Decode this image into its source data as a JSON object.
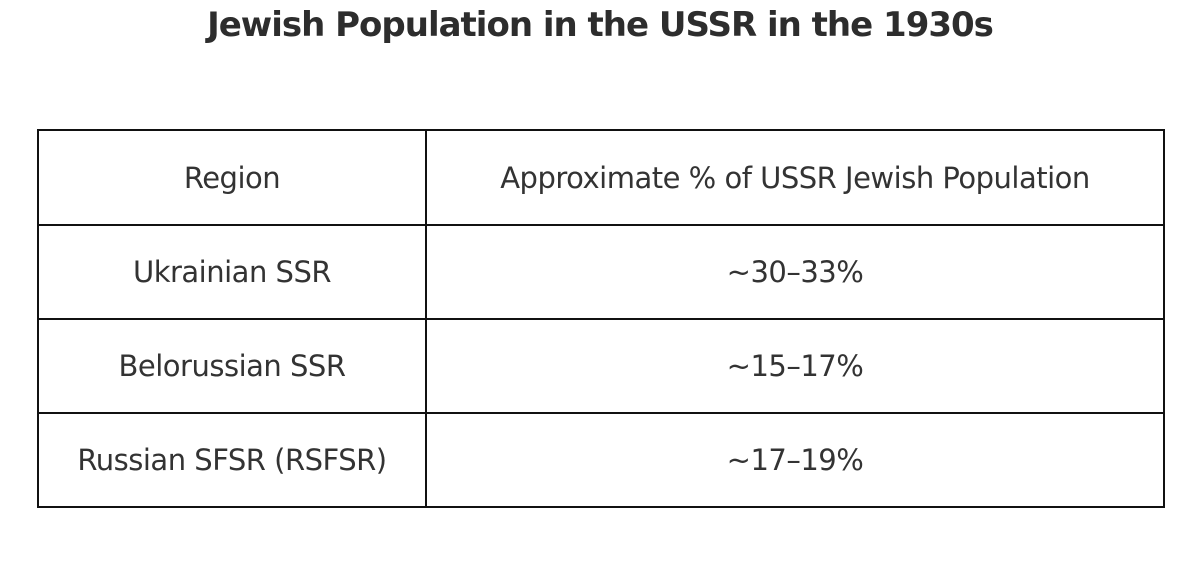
{
  "page": {
    "title": "Jewish Population in the USSR in the 1930s"
  },
  "table": {
    "headers": {
      "region": "Region",
      "value": "Approximate % of USSR Jewish Population"
    },
    "rows": [
      {
        "region": "Ukrainian SSR",
        "value": "~30–33%"
      },
      {
        "region": "Belorussian SSR",
        "value": "~15–17%"
      },
      {
        "region": "Russian SFSR (RSFSR)",
        "value": "~17–19%"
      }
    ]
  },
  "colors": {
    "text": "#333333",
    "border": "#111111",
    "background": "#ffffff"
  },
  "chart_data": {
    "type": "table",
    "title": "Jewish Population in the USSR in the 1930s",
    "columns": [
      "Region",
      "Approximate % of USSR Jewish Population"
    ],
    "rows": [
      [
        "Ukrainian SSR",
        "~30–33%"
      ],
      [
        "Belorussian SSR",
        "~15–17%"
      ],
      [
        "Russian SFSR (RSFSR)",
        "~17–19%"
      ]
    ]
  }
}
